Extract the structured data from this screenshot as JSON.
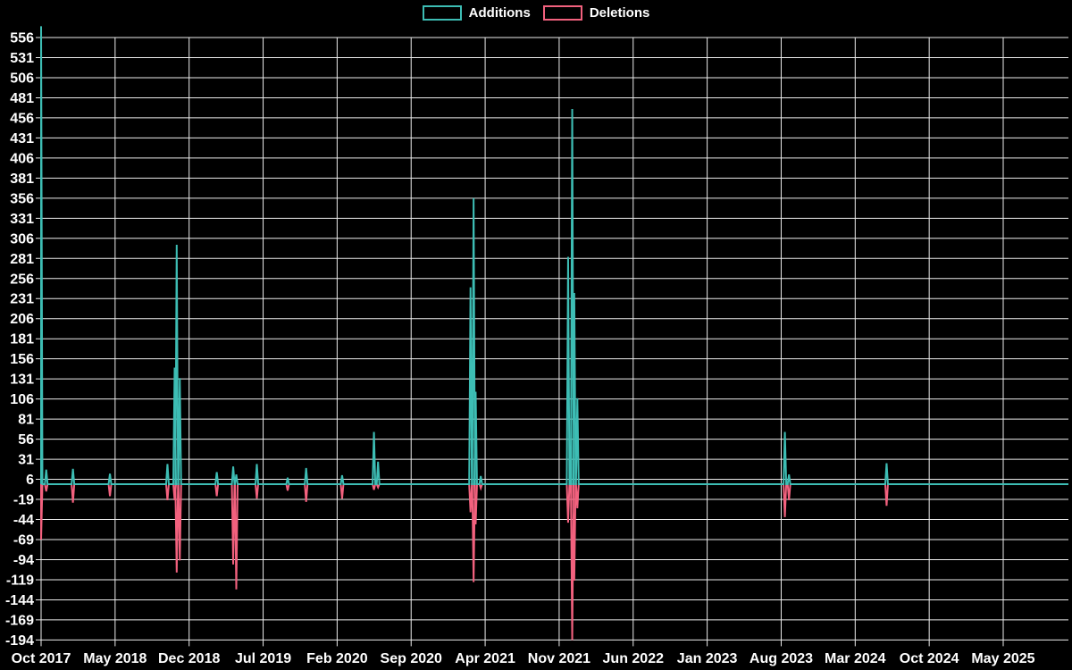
{
  "page": {
    "background": "#000000",
    "text_color": "#ffffff"
  },
  "chart_data": {
    "type": "line",
    "title": "",
    "xlabel": "",
    "ylabel": "",
    "legend_position": "top-center",
    "background": "#000000",
    "grid": true,
    "grid_color": "#ECECEC",
    "axis_text_color": "#ffffff",
    "x_tick_labels": [
      "Oct 2017",
      "May 2018",
      "Dec 2018",
      "Jul 2019",
      "Feb 2020",
      "Sep 2020",
      "Apr 2021",
      "Nov 2021",
      "Jun 2022",
      "Jan 2023",
      "Aug 2023",
      "Mar 2024",
      "Oct 2024",
      "May 2025"
    ],
    "y_tick_values": [
      556,
      531,
      506,
      481,
      456,
      431,
      406,
      381,
      356,
      331,
      306,
      281,
      256,
      231,
      206,
      181,
      156,
      131,
      106,
      81,
      56,
      31,
      6,
      -19,
      -44,
      -69,
      -94,
      -119,
      -144,
      -169,
      -194
    ],
    "ylim": [
      -194,
      556
    ],
    "baseline_value": 0,
    "x_domain_note": "t = fractional position across plot; t=0 at Oct 2017 tick, t=1 at right edge (~late 2025); values are 0 between listed spike points",
    "series": [
      {
        "name": "Additions",
        "color": "#3DBDB4",
        "points": [
          {
            "t": 0.0,
            "v": 570,
            "approx": "Oct 2017",
            "clipped": true
          },
          {
            "t": 0.005,
            "v": 18,
            "approx": "Oct 2017"
          },
          {
            "t": 0.031,
            "v": 19,
            "approx": "Jan 2018"
          },
          {
            "t": 0.067,
            "v": 13,
            "approx": "Apr 2018"
          },
          {
            "t": 0.123,
            "v": 25,
            "approx": "Oct 2018"
          },
          {
            "t": 0.13,
            "v": 145,
            "approx": "Nov 2018"
          },
          {
            "t": 0.132,
            "v": 298,
            "approx": "Nov 2018"
          },
          {
            "t": 0.135,
            "v": 132,
            "approx": "Dec 2018"
          },
          {
            "t": 0.171,
            "v": 15,
            "approx": "Mar 2019"
          },
          {
            "t": 0.187,
            "v": 22,
            "approx": "Apr 2019"
          },
          {
            "t": 0.19,
            "v": 12,
            "approx": "May 2019"
          },
          {
            "t": 0.21,
            "v": 25,
            "approx": "Jul 2019"
          },
          {
            "t": 0.24,
            "v": 8,
            "approx": "Sep 2019"
          },
          {
            "t": 0.258,
            "v": 20,
            "approx": "Nov 2019"
          },
          {
            "t": 0.293,
            "v": 11,
            "approx": "Feb 2020"
          },
          {
            "t": 0.324,
            "v": 65,
            "approx": "May 2020"
          },
          {
            "t": 0.328,
            "v": 28,
            "approx": "May 2020"
          },
          {
            "t": 0.418,
            "v": 245,
            "approx": "Mar 2021"
          },
          {
            "t": 0.421,
            "v": 356,
            "approx": "Mar 2021"
          },
          {
            "t": 0.423,
            "v": 115,
            "approx": "Apr 2021"
          },
          {
            "t": 0.428,
            "v": 10,
            "approx": "Apr 2021"
          },
          {
            "t": 0.513,
            "v": 283,
            "approx": "Nov 2021"
          },
          {
            "t": 0.517,
            "v": 467,
            "approx": "Dec 2021"
          },
          {
            "t": 0.519,
            "v": 238,
            "approx": "Dec 2021"
          },
          {
            "t": 0.522,
            "v": 107,
            "approx": "Dec 2021"
          },
          {
            "t": 0.724,
            "v": 65,
            "approx": "Aug 2023"
          },
          {
            "t": 0.728,
            "v": 12,
            "approx": "Aug 2023"
          },
          {
            "t": 0.823,
            "v": 26,
            "approx": "Jun 2024"
          }
        ]
      },
      {
        "name": "Deletions",
        "color": "#F2617E",
        "points": [
          {
            "t": 0.0,
            "v": -69,
            "approx": "Oct 2017"
          },
          {
            "t": 0.005,
            "v": -9,
            "approx": "Oct 2017"
          },
          {
            "t": 0.031,
            "v": -23,
            "approx": "Jan 2018"
          },
          {
            "t": 0.067,
            "v": -15,
            "approx": "Apr 2018"
          },
          {
            "t": 0.123,
            "v": -20,
            "approx": "Oct 2018"
          },
          {
            "t": 0.13,
            "v": -20,
            "approx": "Nov 2018"
          },
          {
            "t": 0.132,
            "v": -110,
            "approx": "Nov 2018"
          },
          {
            "t": 0.135,
            "v": -95,
            "approx": "Dec 2018"
          },
          {
            "t": 0.171,
            "v": -15,
            "approx": "Mar 2019"
          },
          {
            "t": 0.187,
            "v": -100,
            "approx": "Apr 2019"
          },
          {
            "t": 0.19,
            "v": -131,
            "approx": "May 2019"
          },
          {
            "t": 0.21,
            "v": -18,
            "approx": "Jul 2019"
          },
          {
            "t": 0.24,
            "v": -8,
            "approx": "Sep 2019"
          },
          {
            "t": 0.258,
            "v": -22,
            "approx": "Nov 2019"
          },
          {
            "t": 0.293,
            "v": -18,
            "approx": "Feb 2020"
          },
          {
            "t": 0.324,
            "v": -7,
            "approx": "May 2020"
          },
          {
            "t": 0.328,
            "v": -4,
            "approx": "May 2020"
          },
          {
            "t": 0.418,
            "v": -35,
            "approx": "Mar 2021"
          },
          {
            "t": 0.421,
            "v": -122,
            "approx": "Mar 2021"
          },
          {
            "t": 0.423,
            "v": -50,
            "approx": "Apr 2021"
          },
          {
            "t": 0.428,
            "v": -5,
            "approx": "Apr 2021"
          },
          {
            "t": 0.513,
            "v": -48,
            "approx": "Nov 2021"
          },
          {
            "t": 0.517,
            "v": -194,
            "approx": "Dec 2021"
          },
          {
            "t": 0.519,
            "v": -120,
            "approx": "Dec 2021"
          },
          {
            "t": 0.522,
            "v": -30,
            "approx": "Dec 2021"
          },
          {
            "t": 0.724,
            "v": -41,
            "approx": "Aug 2023"
          },
          {
            "t": 0.728,
            "v": -20,
            "approx": "Aug 2023"
          },
          {
            "t": 0.823,
            "v": -27,
            "approx": "Jun 2024"
          }
        ]
      }
    ],
    "annotations": [
      "Oct 2017 additions spike is clipped at the top of the plot (exceeds 556)",
      "Dec 2021 deletions spike reaches the bottom gridline (-194)"
    ]
  }
}
